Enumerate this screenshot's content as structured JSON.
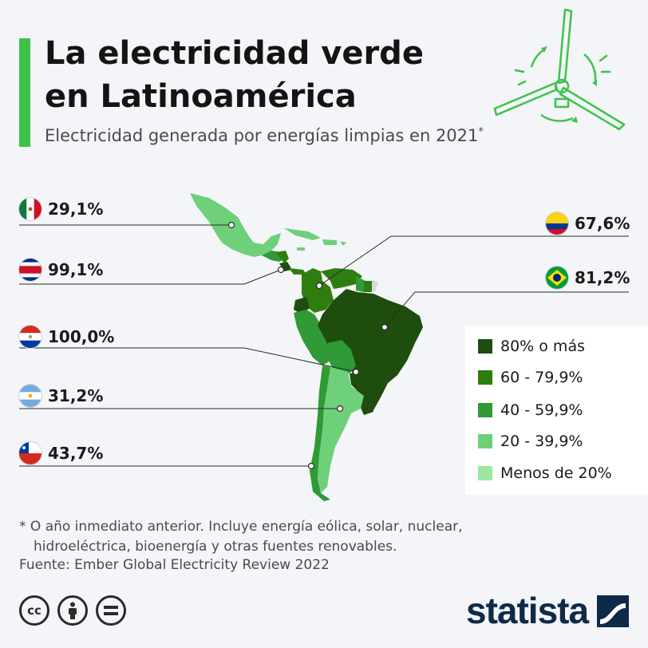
{
  "header": {
    "title_line1": "La electricidad verde",
    "title_line2": "en Latinoamérica",
    "subtitle": "Electricidad generada por energías limpias en 2021",
    "subtitle_mark": "*"
  },
  "countries": [
    {
      "id": "mexico",
      "flag": "mexico-flag-icon",
      "value": "29,1%"
    },
    {
      "id": "costa-rica",
      "flag": "costa-rica-flag-icon",
      "value": "99,1%"
    },
    {
      "id": "paraguay",
      "flag": "paraguay-flag-icon",
      "value": "100,0%"
    },
    {
      "id": "argentina",
      "flag": "argentina-flag-icon",
      "value": "31,2%"
    },
    {
      "id": "chile",
      "flag": "chile-flag-icon",
      "value": "43,7%"
    },
    {
      "id": "colombia",
      "flag": "colombia-flag-icon",
      "value": "67,6%"
    },
    {
      "id": "brazil",
      "flag": "brazil-flag-icon",
      "value": "81,2%"
    }
  ],
  "legend": [
    {
      "label": "80% o más",
      "color": "#1f4d0e"
    },
    {
      "label": "60 - 79,9%",
      "color": "#2e7d0f"
    },
    {
      "label": "40 - 59,9%",
      "color": "#2f9a36"
    },
    {
      "label": "20 - 39,9%",
      "color": "#6fd07a"
    },
    {
      "label": "Menos de 20%",
      "color": "#9ae89f"
    }
  ],
  "footer": {
    "note_line1": "* O año inmediato anterior. Incluye energía eólica, solar, nuclear,",
    "note_line2": "hidroeléctrica, bioenergía y otras fuentes renovables.",
    "source": "Fuente: Ember Global Electricity Review 2022",
    "brand": "statista",
    "license_icons": [
      "cc-icon",
      "attribution-icon",
      "no-derivatives-icon"
    ]
  },
  "colors": {
    "accent": "#3fc24a",
    "brand": "#0e2a47"
  }
}
